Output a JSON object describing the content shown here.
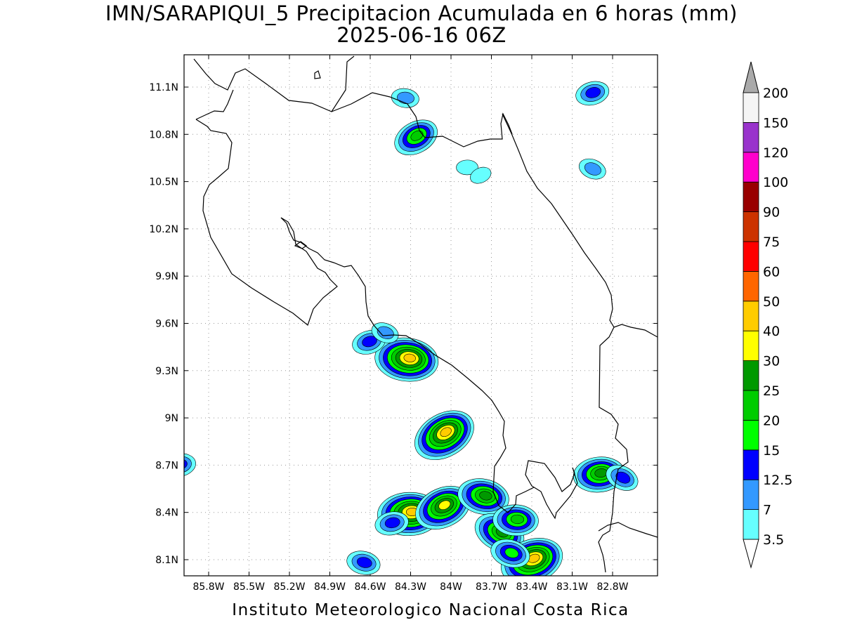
{
  "title": {
    "line1": "IMN/SARAPIQUI_5 Precipitacion Acumulada en 6 horas (mm)",
    "line2": "2025-06-16 06Z"
  },
  "footer": "Instituto Meteorologico Nacional Costa Rica",
  "map": {
    "lon_range": [
      -86.05,
      -83.05
    ],
    "lat_range": [
      8.0,
      11.3
    ],
    "lat_ticks": [
      {
        "value": 8.1,
        "label": "8.1N"
      },
      {
        "value": 8.4,
        "label": "8.4N"
      },
      {
        "value": 8.7,
        "label": "8.7N"
      },
      {
        "value": 9.0,
        "label": "9N"
      },
      {
        "value": 9.3,
        "label": "9.3N"
      },
      {
        "value": 9.6,
        "label": "9.6N"
      },
      {
        "value": 9.9,
        "label": "9.9N"
      },
      {
        "value": 10.2,
        "label": "10.2N"
      },
      {
        "value": 10.5,
        "label": "10.5N"
      },
      {
        "value": 10.8,
        "label": "10.8N"
      },
      {
        "value": 11.1,
        "label": "11.1N"
      }
    ],
    "lon_ticks": [
      {
        "value": -85.8,
        "label": "85.8W"
      },
      {
        "value": -85.5,
        "label": "85.5W"
      },
      {
        "value": -85.2,
        "label": "85.2W"
      },
      {
        "value": -84.9,
        "label": "84.9W"
      },
      {
        "value": -84.6,
        "label": "84.6W"
      },
      {
        "value": -84.3,
        "label": "84.3W"
      },
      {
        "value": -84.0,
        "label": "84W"
      },
      {
        "value": -83.7,
        "label": "83.7W"
      },
      {
        "value": -83.4,
        "label": "83.4W"
      },
      {
        "value": -83.1,
        "label": "83.1W"
      },
      {
        "value": -82.8,
        "label": "82.8W"
      }
    ]
  },
  "legend": {
    "levels": [
      {
        "label": "3.5",
        "color": "#66ffff"
      },
      {
        "label": "7",
        "color": "#3399ff"
      },
      {
        "label": "12.5",
        "color": "#0000ff"
      },
      {
        "label": "15",
        "color": "#00ff00"
      },
      {
        "label": "20",
        "color": "#00cc00"
      },
      {
        "label": "25",
        "color": "#009900"
      },
      {
        "label": "30",
        "color": "#ffff00"
      },
      {
        "label": "40",
        "color": "#ffcc00"
      },
      {
        "label": "50",
        "color": "#ff6600"
      },
      {
        "label": "60",
        "color": "#ff0000"
      },
      {
        "label": "75",
        "color": "#cc3300"
      },
      {
        "label": "90",
        "color": "#990000"
      },
      {
        "label": "100",
        "color": "#ff00cc"
      },
      {
        "label": "120",
        "color": "#9933cc"
      },
      {
        "label": "150",
        "color": "#f5f5f5"
      },
      {
        "label": "200",
        "color": "#aaaaaa"
      }
    ],
    "segment_colors": [
      "#66ffff",
      "#3399ff",
      "#0000ff",
      "#00ff00",
      "#00cc00",
      "#009900",
      "#ffff00",
      "#ffcc00",
      "#ff6600",
      "#ff0000",
      "#cc3300",
      "#990000",
      "#ff00cc",
      "#9933cc",
      "#f5f5f5"
    ],
    "top_arrow_color": "#aaaaaa",
    "bottom_arrow_color": "#ffffff"
  },
  "cells": [
    {
      "lon": -84.05,
      "lat": 8.89,
      "max": 40
    },
    {
      "lon": -84.33,
      "lat": 9.37,
      "max": 40
    },
    {
      "lon": -84.61,
      "lat": 9.48,
      "max": 12.5
    },
    {
      "lon": -84.49,
      "lat": 9.54,
      "max": 7
    },
    {
      "lon": -84.31,
      "lat": 8.39,
      "max": 40
    },
    {
      "lon": -84.06,
      "lat": 8.43,
      "max": 30
    },
    {
      "lon": -83.76,
      "lat": 8.5,
      "max": 25
    },
    {
      "lon": -84.44,
      "lat": 8.33,
      "max": 12.5
    },
    {
      "lon": -83.64,
      "lat": 8.27,
      "max": 25
    },
    {
      "lon": -83.52,
      "lat": 8.35,
      "max": 20
    },
    {
      "lon": -83.4,
      "lat": 8.09,
      "max": 40
    },
    {
      "lon": -83.56,
      "lat": 8.14,
      "max": 15
    },
    {
      "lon": -82.9,
      "lat": 8.64,
      "max": 25
    },
    {
      "lon": -84.26,
      "lat": 10.78,
      "max": 20
    },
    {
      "lon": -84.34,
      "lat": 11.03,
      "max": 7
    },
    {
      "lon": -82.95,
      "lat": 11.06,
      "max": 12.5
    },
    {
      "lon": -82.95,
      "lat": 10.58,
      "max": 7
    },
    {
      "lon": -83.88,
      "lat": 10.59,
      "max": 3.5
    },
    {
      "lon": -83.78,
      "lat": 10.54,
      "max": 3.5
    },
    {
      "lon": -84.65,
      "lat": 8.08,
      "max": 12.5
    },
    {
      "lon": -86.02,
      "lat": 8.7,
      "max": 12.5
    },
    {
      "lon": -82.73,
      "lat": 8.62,
      "max": 12.5
    }
  ]
}
